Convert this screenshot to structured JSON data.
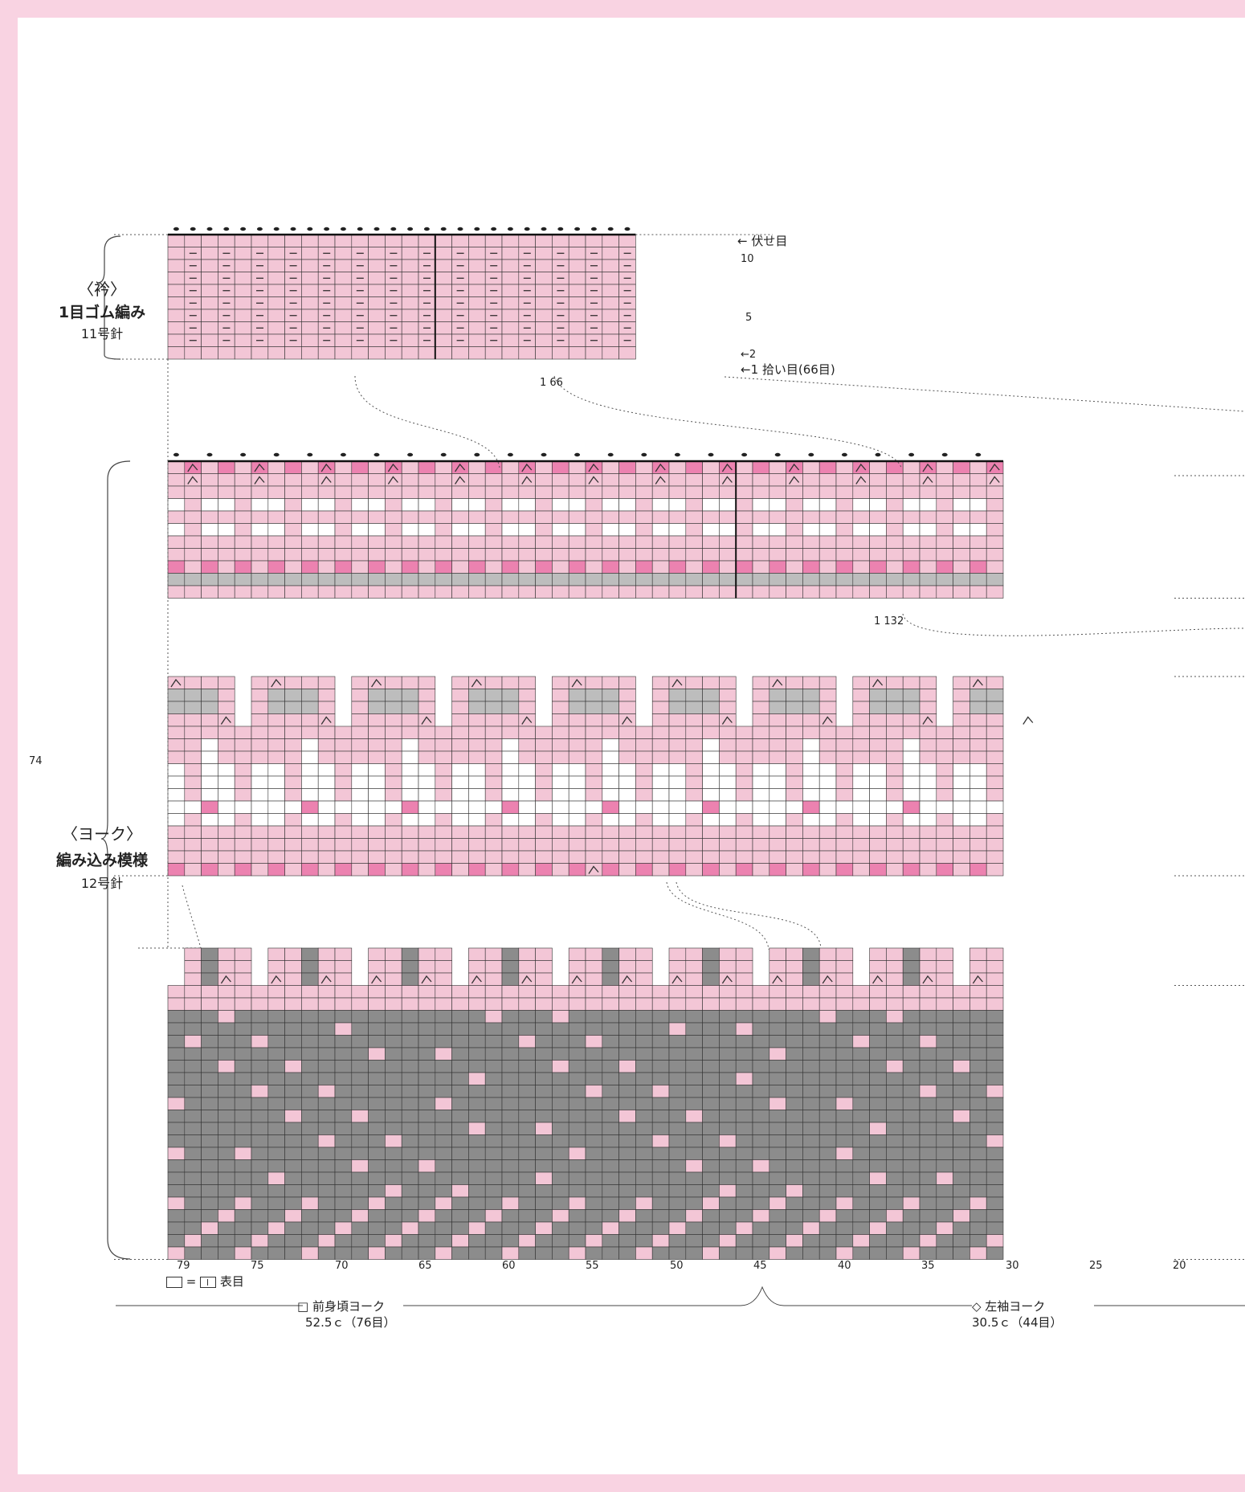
{
  "collar": {
    "title": "〈衿〉",
    "stitch": "1目ゴム編み",
    "needle": "11号針",
    "bindoff_label": "伏せ目",
    "row10": "10",
    "row5": "5",
    "row2": "2",
    "row1_label": "1 拾い目(66目)",
    "repeat_label": "1  66"
  },
  "yoke": {
    "title": "〈ヨーク〉",
    "stitch": "編み込み模様",
    "needle": "12号針",
    "height_label": "74",
    "repeat_label": "1  132"
  },
  "axis": {
    "ticks": [
      "79",
      "75",
      "70",
      "65",
      "60",
      "55",
      "50",
      "45",
      "40",
      "35",
      "30",
      "25",
      "20"
    ]
  },
  "legend": {
    "equals": "=",
    "label": "表目"
  },
  "bottom": {
    "front_label": "□ 前身頃ヨーク",
    "front_size": "52.5ｃ（76目）",
    "sleeve_label": "◇ 左袖ヨーク",
    "sleeve_size": "30.5ｃ（44目）"
  },
  "colors": {
    "page_border": "#f9d3e2",
    "light_pink": "#f3c6d6",
    "hot_pink": "#ec82b0",
    "grey": "#8c8c8c",
    "light_grey": "#bdbdbd",
    "white": "#ffffff"
  }
}
